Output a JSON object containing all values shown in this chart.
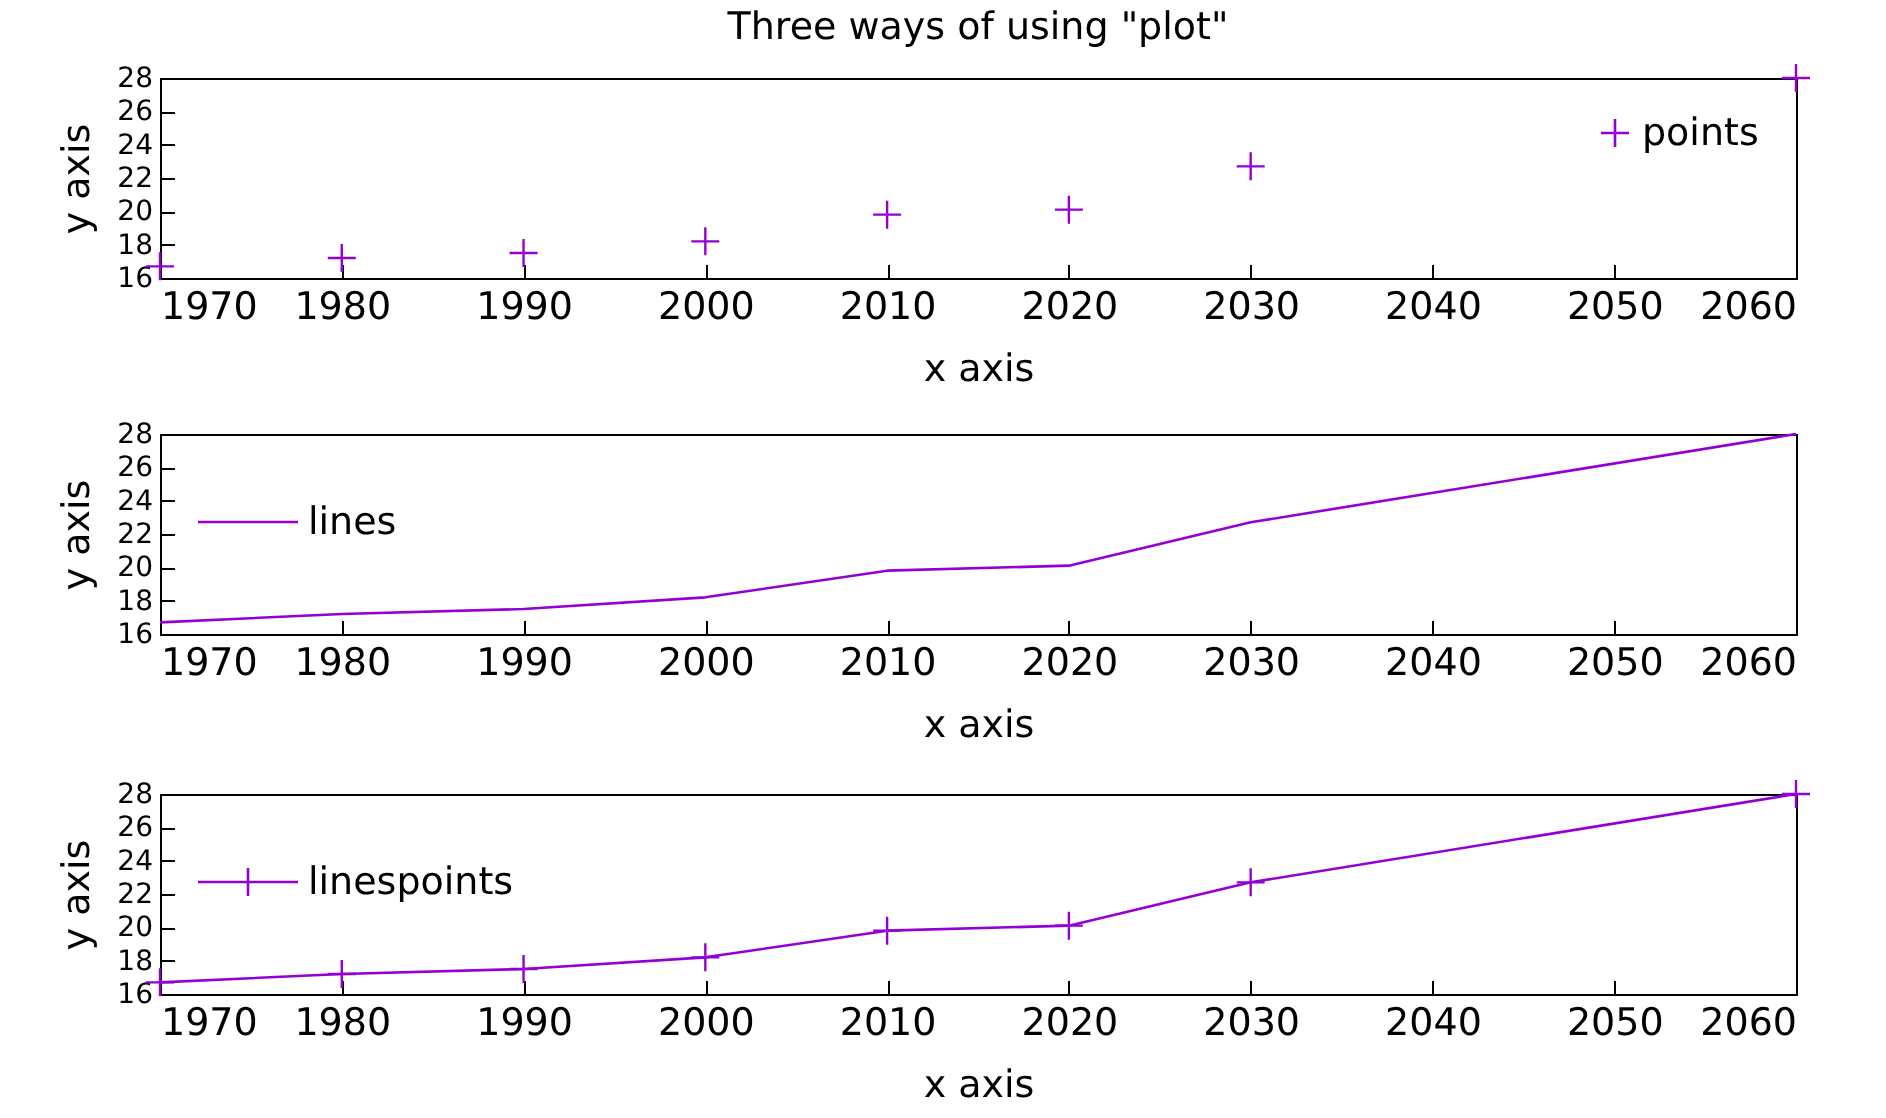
{
  "chart_data": [
    {
      "type": "scatter",
      "title": "Three ways of using \"plot\"",
      "xlabel": "x axis",
      "ylabel": "y axis",
      "x": [
        1970,
        1980,
        1990,
        2000,
        2010,
        2020,
        2030,
        2060
      ],
      "series": [
        {
          "name": "points",
          "color": "#9400d3",
          "values": [
            16.7,
            17.2,
            17.5,
            18.2,
            19.8,
            20.1,
            22.7,
            28.0
          ]
        }
      ],
      "xlim": [
        1970,
        2060
      ],
      "xticks": [
        1970,
        1980,
        1990,
        2000,
        2010,
        2020,
        2030,
        2040,
        2050,
        2060
      ],
      "ylim": [
        16,
        28
      ],
      "yticks": [
        16,
        18,
        20,
        22,
        24,
        26,
        28
      ],
      "marker": "cross",
      "legend": "top right"
    },
    {
      "type": "line",
      "xlabel": "x axis",
      "ylabel": "y axis",
      "x": [
        1970,
        1980,
        1990,
        2000,
        2010,
        2020,
        2030,
        2060
      ],
      "series": [
        {
          "name": "lines",
          "color": "#9400d3",
          "values": [
            16.7,
            17.2,
            17.5,
            18.2,
            19.8,
            20.1,
            22.7,
            28.0
          ]
        }
      ],
      "xlim": [
        1970,
        2060
      ],
      "xticks": [
        1970,
        1980,
        1990,
        2000,
        2010,
        2020,
        2030,
        2040,
        2050,
        2060
      ],
      "ylim": [
        16,
        28
      ],
      "yticks": [
        16,
        18,
        20,
        22,
        24,
        26,
        28
      ],
      "line_style": "solid",
      "legend": "top left"
    },
    {
      "type": "line",
      "xlabel": "x axis",
      "ylabel": "y axis",
      "x": [
        1970,
        1980,
        1990,
        2000,
        2010,
        2020,
        2030,
        2060
      ],
      "series": [
        {
          "name": "linespoints",
          "color": "#9400d3",
          "values": [
            16.7,
            17.2,
            17.5,
            18.2,
            19.8,
            20.1,
            22.7,
            28.0
          ]
        }
      ],
      "xlim": [
        1970,
        2060
      ],
      "xticks": [
        1970,
        1980,
        1990,
        2000,
        2010,
        2020,
        2030,
        2040,
        2050,
        2060
      ],
      "ylim": [
        16,
        28
      ],
      "yticks": [
        16,
        18,
        20,
        22,
        24,
        26,
        28
      ],
      "marker": "cross",
      "line_style": "solid",
      "legend": "top left"
    }
  ]
}
